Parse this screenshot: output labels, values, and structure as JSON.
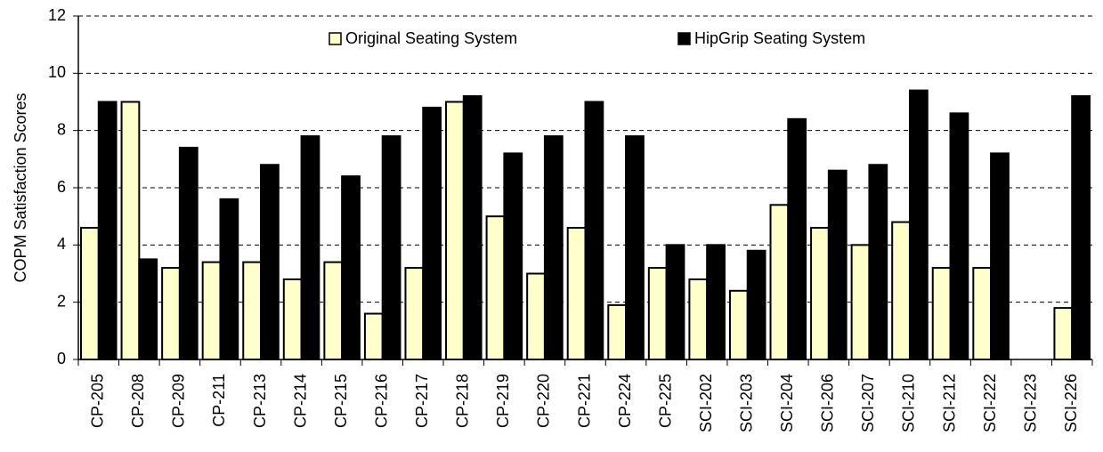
{
  "chart_data": {
    "type": "bar",
    "y_label": "COPM Satisfaction Scores",
    "categories": [
      "CP-205",
      "CP-208",
      "CP-209",
      "CP-211",
      "CP-213",
      "CP-214",
      "CP-215",
      "CP-216",
      "CP-217",
      "CP-218",
      "CP-219",
      "CP-220",
      "CP-221",
      "CP-224",
      "CP-225",
      "SCI-202",
      "SCI-203",
      "SCI-204",
      "SCI-206",
      "SCI-207",
      "SCI-210",
      "SCI-212",
      "SCI-222",
      "SCI-223",
      "SCI-226"
    ],
    "series": [
      {
        "name": "Original Seating System",
        "color": "#ffffcc",
        "values": [
          4.6,
          9.0,
          3.2,
          3.4,
          3.4,
          2.8,
          3.4,
          1.6,
          3.2,
          9.0,
          5.0,
          3.0,
          4.6,
          1.9,
          3.2,
          2.8,
          2.4,
          5.4,
          4.6,
          4.0,
          4.8,
          3.2,
          3.2,
          null,
          1.8
        ]
      },
      {
        "name": "HipGrip Seating System",
        "color": "#000000",
        "values": [
          9.0,
          3.5,
          7.4,
          5.6,
          6.8,
          7.8,
          6.4,
          7.8,
          8.8,
          9.2,
          7.2,
          7.8,
          9.0,
          7.8,
          4.0,
          4.0,
          3.8,
          8.4,
          6.6,
          6.8,
          9.4,
          8.6,
          7.2,
          null,
          9.2
        ]
      }
    ],
    "ylim": [
      0,
      12
    ],
    "yticks": [
      0,
      2,
      4,
      6,
      8,
      10,
      12
    ],
    "grid": true,
    "legend": "top"
  }
}
